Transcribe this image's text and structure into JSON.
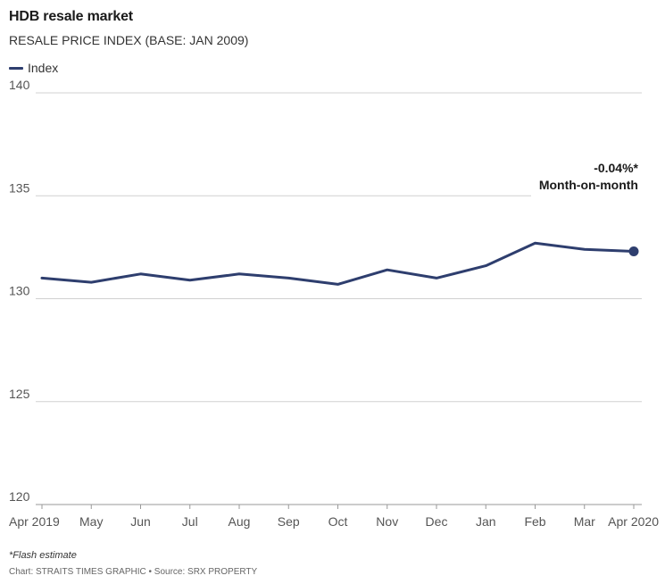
{
  "colors": {
    "series": "#2e3e6e",
    "grid": "#d0d0d0",
    "axis": "#999999"
  },
  "chart_data": {
    "type": "line",
    "title": "HDB resale market",
    "subtitle": "RESALE PRICE INDEX (BASE: JAN 2009)",
    "xlabel": "",
    "ylabel": "",
    "categories": [
      "Apr 2019",
      "May",
      "Jun",
      "Jul",
      "Aug",
      "Sep",
      "Oct",
      "Nov",
      "Dec",
      "Jan",
      "Feb",
      "Mar",
      "Apr 2020"
    ],
    "series": [
      {
        "name": "Index",
        "values": [
          131.0,
          130.8,
          131.2,
          130.9,
          131.2,
          131.0,
          130.7,
          131.4,
          131.0,
          131.6,
          132.7,
          132.4,
          132.3
        ]
      }
    ],
    "ylim": [
      120,
      140
    ],
    "yticks": [
      "120",
      "125",
      "130",
      "135",
      "140"
    ],
    "grid": true,
    "legend_position": "top-left",
    "annotation": {
      "value_text": "-0.04%*",
      "label_text": "Month-on-month"
    }
  },
  "footnote": "*Flash estimate",
  "credit": "Chart: STRAITS TIMES GRAPHIC • Source: SRX PROPERTY"
}
